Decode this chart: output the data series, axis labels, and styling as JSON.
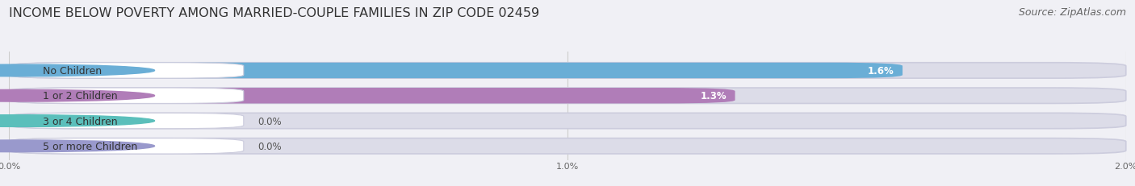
{
  "title": "INCOME BELOW POVERTY AMONG MARRIED-COUPLE FAMILIES IN ZIP CODE 02459",
  "source": "Source: ZipAtlas.com",
  "categories": [
    "No Children",
    "1 or 2 Children",
    "3 or 4 Children",
    "5 or more Children"
  ],
  "values": [
    1.6,
    1.3,
    0.0,
    0.0
  ],
  "bar_colors": [
    "#6aaed6",
    "#b07db8",
    "#5bbfbb",
    "#9999cc"
  ],
  "background_color": "#f0f0f5",
  "bar_bg_color": "#dcdce8",
  "xlim": [
    0.0,
    2.0
  ],
  "xticks": [
    0.0,
    1.0,
    2.0
  ],
  "xtick_labels": [
    "0.0%",
    "1.0%",
    "2.0%"
  ],
  "title_fontsize": 11.5,
  "source_fontsize": 9,
  "label_fontsize": 9,
  "value_fontsize": 8.5
}
